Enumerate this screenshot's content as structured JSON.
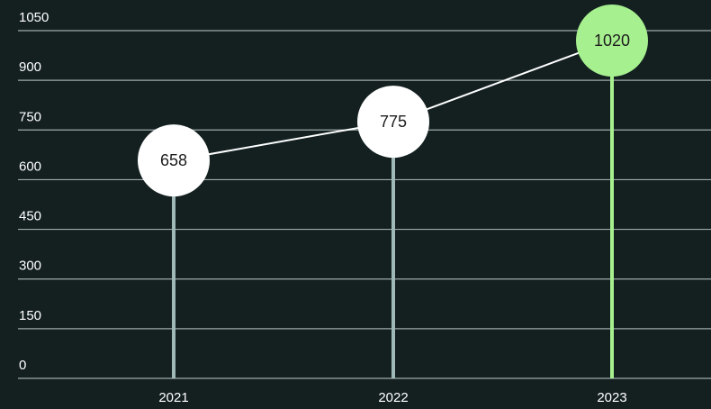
{
  "chart_data": {
    "type": "line",
    "title": "",
    "xlabel": "",
    "ylabel": "",
    "categories": [
      "2021",
      "2022",
      "2023"
    ],
    "values": [
      658,
      775,
      1020
    ],
    "value_labels": [
      "658",
      "775",
      "1020"
    ],
    "ylim": [
      0,
      1050
    ],
    "yticks": [
      0,
      150,
      300,
      450,
      600,
      750,
      900,
      1050
    ],
    "ytick_labels": [
      "0",
      "150",
      "300",
      "450",
      "600",
      "750",
      "900",
      "1050"
    ],
    "grid": true,
    "highlight_index": 2
  },
  "colors": {
    "background": "#142020",
    "grid": "#b9c2c2",
    "stem": "#9fb8b8",
    "stem_highlight": "#a6f08f",
    "line": "#ffffff",
    "point": "#ffffff",
    "point_highlight": "#a6f08f",
    "text": "#ffffff",
    "point_text": "#1d1d1d"
  }
}
